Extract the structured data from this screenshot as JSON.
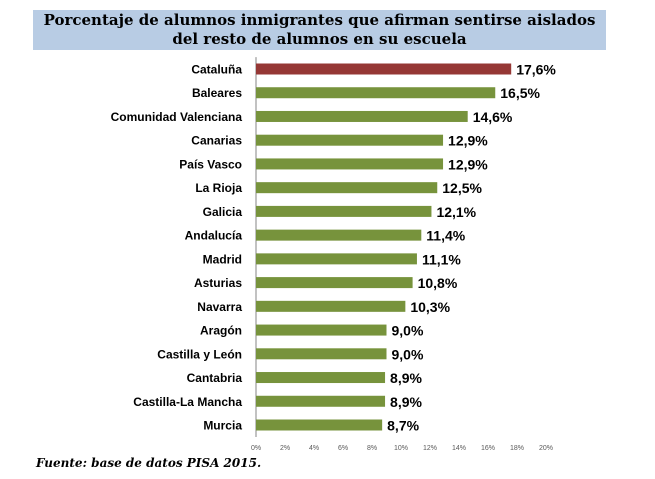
{
  "header": {
    "title_line1": "Porcentaje de alumnos inmigrantes que afirman sentirse aislados",
    "title_line2": "del resto de alumnos en su escuela"
  },
  "source_note": "Fuente: base de datos PISA 2015.",
  "colors": {
    "highlight": "#953735",
    "bar": "#77933c",
    "title_bg": "#b8cce4"
  },
  "chart_data": {
    "type": "bar",
    "orientation": "horizontal",
    "categories": [
      "Cataluña",
      "Baleares",
      "Comunidad Valenciana",
      "Canarias",
      "País Vasco",
      "La Rioja",
      "Galicia",
      "Andalucía",
      "Madrid",
      "Asturias",
      "Navarra",
      "Aragón",
      "Castilla y León",
      "Cantabria",
      "Castilla-La Mancha",
      "Murcia"
    ],
    "values": [
      17.6,
      16.5,
      14.6,
      12.9,
      12.9,
      12.5,
      12.1,
      11.4,
      11.1,
      10.8,
      10.3,
      9.0,
      9.0,
      8.9,
      8.9,
      8.7
    ],
    "data_labels": [
      "17,6%",
      "16,5%",
      "14,6%",
      "12,9%",
      "12,9%",
      "12,5%",
      "12,1%",
      "11,4%",
      "11,1%",
      "10,8%",
      "10,3%",
      "9,0%",
      "9,0%",
      "8,9%",
      "8,9%",
      "8,7%"
    ],
    "highlight_index": 0,
    "xlim": [
      0,
      20
    ],
    "x_ticks": [
      0,
      2,
      4,
      6,
      8,
      10,
      12,
      14,
      16,
      18,
      20
    ],
    "x_tick_labels": [
      "0%",
      "2%",
      "4%",
      "6%",
      "8%",
      "10%",
      "12%",
      "14%",
      "16%",
      "18%",
      "20%"
    ],
    "grid": false,
    "legend": "none"
  }
}
